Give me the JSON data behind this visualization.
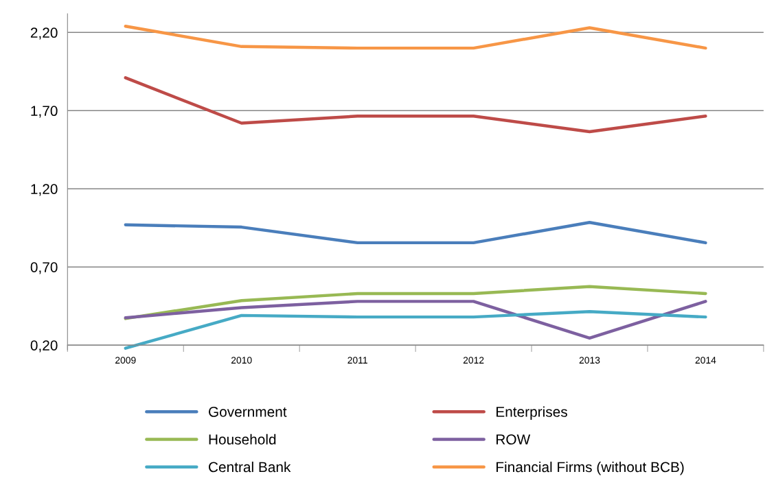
{
  "chart_data": {
    "type": "line",
    "categories": [
      "2009",
      "2010",
      "2011",
      "2012",
      "2013",
      "2014"
    ],
    "series": [
      {
        "name": "Government",
        "color": "#4a7ebb",
        "values": [
          0.97,
          0.955,
          0.855,
          0.855,
          0.985,
          0.855
        ]
      },
      {
        "name": "Enterprises",
        "color": "#be4b48",
        "values": [
          1.91,
          1.62,
          1.665,
          1.665,
          1.565,
          1.665
        ]
      },
      {
        "name": "Household",
        "color": "#98b954",
        "values": [
          0.37,
          0.485,
          0.53,
          0.53,
          0.575,
          0.53
        ]
      },
      {
        "name": "ROW",
        "color": "#7d60a0",
        "values": [
          0.375,
          0.44,
          0.48,
          0.48,
          0.245,
          0.48
        ]
      },
      {
        "name": "Central Bank",
        "color": "#46aac5",
        "values": [
          0.18,
          0.39,
          0.38,
          0.38,
          0.415,
          0.38
        ]
      },
      {
        "name": "Financial Firms (without BCB)",
        "color": "#f79646",
        "values": [
          2.24,
          2.11,
          2.1,
          2.1,
          2.23,
          2.1
        ]
      }
    ],
    "ylim": [
      0.17,
      2.32
    ],
    "yticks": [
      {
        "value": 0.2,
        "label": "0,20"
      },
      {
        "value": 0.7,
        "label": "0,70"
      },
      {
        "value": 1.2,
        "label": "1,20"
      },
      {
        "value": 1.7,
        "label": "1,70"
      },
      {
        "value": 2.2,
        "label": "2,20"
      }
    ],
    "grid": "y",
    "legend": "bottom",
    "marker": "none",
    "line_style": "solid"
  }
}
